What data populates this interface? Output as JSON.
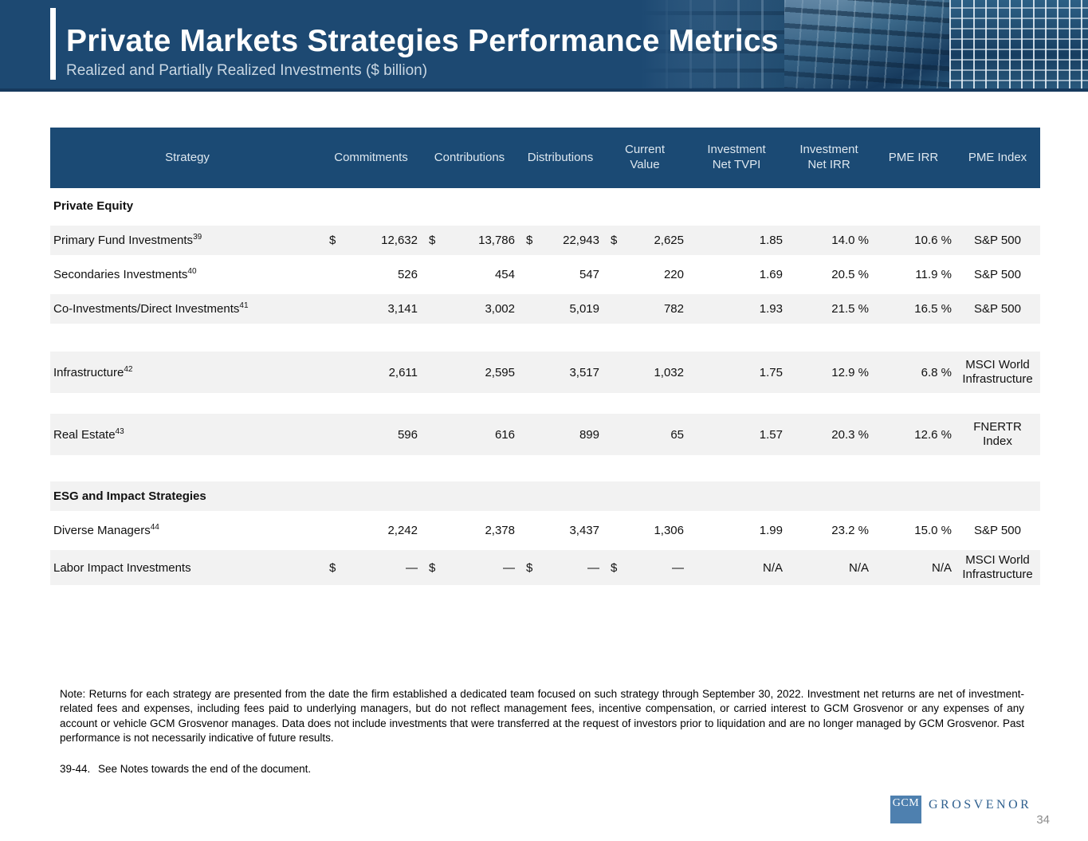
{
  "header": {
    "title": "Private Markets Strategies Performance Metrics",
    "subtitle": "Realized and Partially Realized Investments ($ billion)"
  },
  "table": {
    "columns": [
      "Strategy",
      "Commitments",
      "Contributions",
      "Distributions",
      "Current\nValue",
      "Investment\nNet TVPI",
      "Investment\nNet IRR",
      "PME IRR",
      "PME Index"
    ],
    "rows": [
      {
        "type": "section",
        "strategy": "Private Equity"
      },
      {
        "strategy": "Primary Fund Investments",
        "fn": "39",
        "cur": "$",
        "commitments": "12,632",
        "contributions": "13,786",
        "distributions": "22,943",
        "current_value": "2,625",
        "tvpi": "1.85",
        "net_irr": "14.0 %",
        "pme_irr": "10.6 %",
        "pme_index": "S&P 500"
      },
      {
        "strategy": "Secondaries Investments",
        "fn": "40",
        "commitments": "526",
        "contributions": "454",
        "distributions": "547",
        "current_value": "220",
        "tvpi": "1.69",
        "net_irr": "20.5 %",
        "pme_irr": "11.9 %",
        "pme_index": "S&P 500"
      },
      {
        "strategy": "Co-Investments/Direct Investments",
        "fn": "41",
        "commitments": "3,141",
        "contributions": "3,002",
        "distributions": "5,019",
        "current_value": "782",
        "tvpi": "1.93",
        "net_irr": "21.5 %",
        "pme_irr": "16.5 %",
        "pme_index": "S&P 500"
      },
      {
        "strategy": "Infrastructure",
        "fn": "42",
        "commitments": "2,611",
        "contributions": "2,595",
        "distributions": "3,517",
        "current_value": "1,032",
        "tvpi": "1.75",
        "net_irr": "12.9 %",
        "pme_irr": "6.8 %",
        "pme_index": "MSCI World\nInfrastructure"
      },
      {
        "strategy": "Real Estate",
        "fn": "43",
        "commitments": "596",
        "contributions": "616",
        "distributions": "899",
        "current_value": "65",
        "tvpi": "1.57",
        "net_irr": "20.3 %",
        "pme_irr": "12.6 %",
        "pme_index": "FNERTR\nIndex"
      },
      {
        "type": "section",
        "strategy": "ESG and Impact Strategies"
      },
      {
        "strategy": "Diverse Managers",
        "fn": "44",
        "commitments": "2,242",
        "contributions": "2,378",
        "distributions": "3,437",
        "current_value": "1,306",
        "tvpi": "1.99",
        "net_irr": "23.2 %",
        "pme_irr": "15.0 %",
        "pme_index": "S&P 500"
      },
      {
        "strategy": "Labor Impact Investments",
        "cur": "$",
        "commitments": "—",
        "contributions": "—",
        "distributions": "—",
        "current_value": "—",
        "tvpi": "N/A",
        "net_irr": "N/A",
        "pme_irr": "N/A",
        "pme_index": "MSCI World\nInfrastructure"
      }
    ]
  },
  "notes": {
    "body": "Note: Returns for each strategy are presented from the date the firm established a dedicated team focused on such strategy through September 30, 2022. Investment net returns are net of investment-related fees and expenses, including fees paid to underlying managers, but do not reflect management fees, incentive compensation, or carried interest to GCM Grosvenor or any expenses of any account or vehicle GCM Grosvenor manages. Data does not include investments that were transferred at the request of investors prior to liquidation and are no longer managed by GCM Grosvenor. Past performance is not necessarily indicative of future results.",
    "footnote_label": "39-44.",
    "footnote_text": "See Notes towards the end of the document."
  },
  "footer": {
    "logo_mark": "GCM",
    "logo_word": "GROSVENOR",
    "page_number": "34"
  },
  "colors": {
    "header_blue": "#1d4972",
    "table_header_blue": "#1b4a74",
    "stripe_gray": "#f2f2f2",
    "logo_blue": "#4e80af"
  }
}
